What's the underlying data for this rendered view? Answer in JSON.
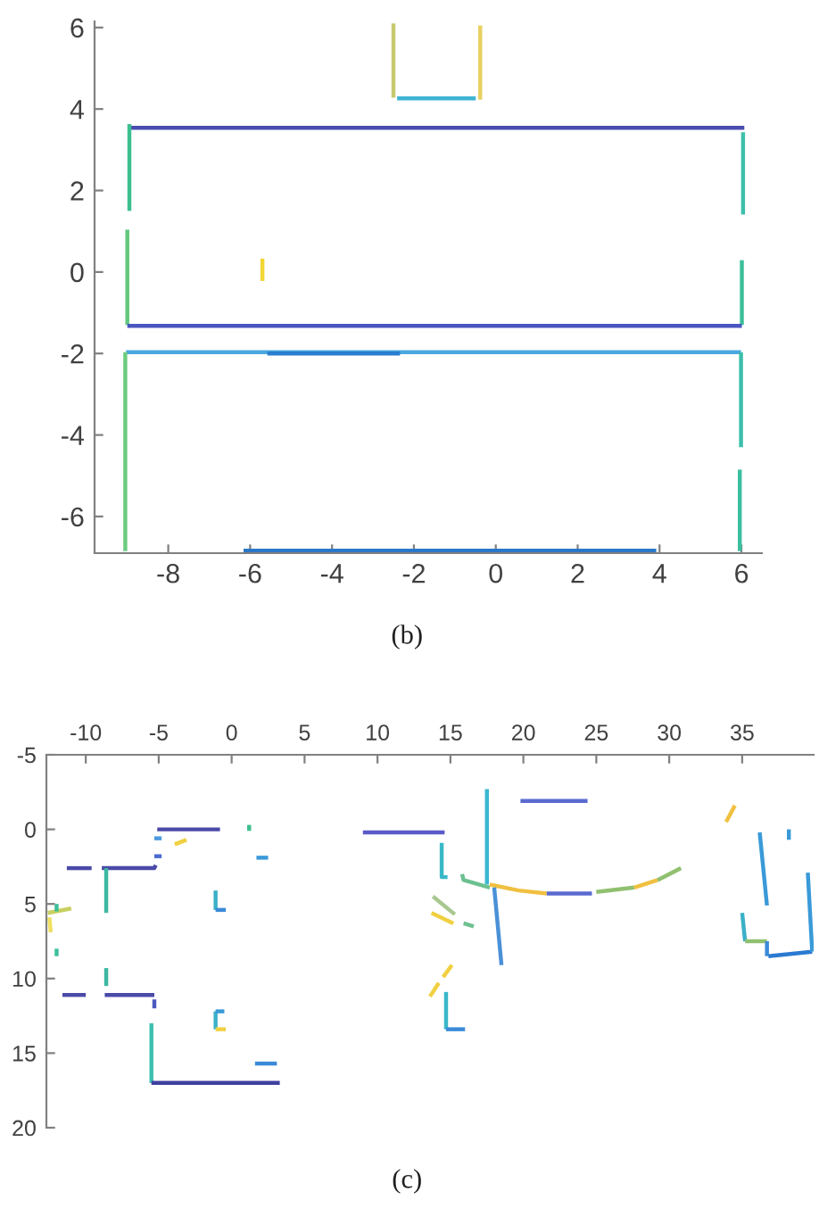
{
  "chart_data": [
    {
      "type": "line",
      "xlim": [
        -9.8,
        6.5
      ],
      "ylim": [
        -6.9,
        6.15
      ],
      "xticks": [
        -8,
        -6,
        -4,
        -2,
        0,
        2,
        4,
        6
      ],
      "yticks": [
        -6,
        -4,
        -2,
        0,
        2,
        4,
        6
      ],
      "annotations": [
        "(b)"
      ],
      "series": [
        {
          "color": "#c8c870",
          "x": [
            -2.5,
            -2.5
          ],
          "values": [
            6.1,
            4.28
          ]
        },
        {
          "color": "#e8d060",
          "x": [
            -0.38,
            -0.38
          ],
          "values": [
            6.05,
            4.23
          ]
        },
        {
          "color": "#3fb4d4",
          "x": [
            -2.41,
            -0.49
          ],
          "values": [
            4.26,
            4.26
          ]
        },
        {
          "color": "#4a4db0",
          "x": [
            -8.95,
            6.07
          ],
          "values": [
            3.54,
            3.54
          ]
        },
        {
          "color": "#3cbf90",
          "x": [
            -8.95,
            -8.95
          ],
          "values": [
            3.63,
            1.5
          ]
        },
        {
          "color": "#62c87e",
          "x": [
            -9.0,
            -9.0
          ],
          "values": [
            1.04,
            -1.3
          ]
        },
        {
          "color": "#f2d633",
          "x": [
            -5.7,
            -5.7
          ],
          "values": [
            0.33,
            -0.22
          ]
        },
        {
          "color": "#3cbfaa",
          "x": [
            6.04,
            6.04
          ],
          "values": [
            3.43,
            1.41
          ]
        },
        {
          "color": "#3cbf9a",
          "x": [
            6.01,
            6.01
          ],
          "values": [
            0.29,
            -1.3
          ]
        },
        {
          "color": "#4a55c0",
          "x": [
            -9.0,
            6.01
          ],
          "values": [
            -1.32,
            -1.32
          ]
        },
        {
          "color": "#4aa8e0",
          "x": [
            -9.03,
            5.99
          ],
          "values": [
            -1.97,
            -1.97
          ]
        },
        {
          "color": "#2a7fd0",
          "x": [
            -5.58,
            -2.34
          ],
          "values": [
            -2.0,
            -2.0
          ]
        },
        {
          "color": "#6ccc80",
          "x": [
            -9.05,
            -9.05
          ],
          "values": [
            -1.97,
            -6.85
          ]
        },
        {
          "color": "#3cbfaa",
          "x": [
            5.99,
            5.99
          ],
          "values": [
            -1.97,
            -4.3
          ]
        },
        {
          "color": "#3cbfa0",
          "x": [
            5.96,
            5.96
          ],
          "values": [
            -4.85,
            -6.85
          ]
        },
        {
          "color": "#2a78c8",
          "x": [
            -6.16,
            3.92
          ],
          "values": [
            -6.84,
            -6.84
          ]
        }
      ]
    },
    {
      "type": "line",
      "xlim": [
        -12.7,
        39.9
      ],
      "ylim": [
        20,
        -5
      ],
      "xticks": [
        -10,
        -5,
        0,
        5,
        10,
        15,
        20,
        25,
        30,
        35
      ],
      "yticks": [
        -5,
        0,
        5,
        10,
        15,
        20
      ],
      "annotations": [
        "(c)"
      ],
      "series": [
        {
          "color": "#4a4aa8",
          "x": [
            -5.1,
            -0.8
          ],
          "values": [
            0.0,
            0.0
          ]
        },
        {
          "color": "#3cbf8f",
          "x": [
            1.2,
            1.2
          ],
          "values": [
            -0.3,
            0.1
          ]
        },
        {
          "color": "#4a9ae0",
          "x": [
            -5.3,
            -4.8
          ],
          "values": [
            0.6,
            0.6
          ]
        },
        {
          "color": "#f0d040",
          "x": [
            -3.9,
            -3.1
          ],
          "values": [
            1.0,
            0.7
          ]
        },
        {
          "color": "#4a6ad0",
          "x": [
            -5.3,
            -4.8
          ],
          "values": [
            1.8,
            1.8
          ]
        },
        {
          "color": "#3a9ad8",
          "x": [
            1.7,
            2.5
          ],
          "values": [
            1.9,
            1.9
          ]
        },
        {
          "color": "#4a4aa8",
          "x": [
            -11.3,
            -9.6
          ],
          "values": [
            2.6,
            2.6
          ]
        },
        {
          "color": "#4a4aa8",
          "x": [
            -8.9,
            -5.3,
            -5.2
          ],
          "values": [
            2.6,
            2.6,
            2.4
          ]
        },
        {
          "color": "#3cb8a0",
          "x": [
            -8.6,
            -8.6
          ],
          "values": [
            2.6,
            5.6
          ]
        },
        {
          "color": "#3ab0c8",
          "x": [
            -1.1,
            -1.1
          ],
          "values": [
            4.1,
            5.4
          ]
        },
        {
          "color": "#3a8ad8",
          "x": [
            -1.1,
            -0.4
          ],
          "values": [
            5.4,
            5.4
          ]
        },
        {
          "color": "#c8d060",
          "x": [
            -12.6,
            -11.0
          ],
          "values": [
            5.6,
            5.3
          ]
        },
        {
          "color": "#3cbf9a",
          "x": [
            -12.0,
            -12.0
          ],
          "values": [
            5.0,
            5.5
          ]
        },
        {
          "color": "#f0e060",
          "x": [
            -12.5,
            -12.4
          ],
          "values": [
            5.9,
            6.9
          ]
        },
        {
          "color": "#3cbf9a",
          "x": [
            -12.0,
            -12.0
          ],
          "values": [
            8.0,
            8.5
          ]
        },
        {
          "color": "#3cb8a0",
          "x": [
            -8.6,
            -8.6
          ],
          "values": [
            9.3,
            10.5
          ]
        },
        {
          "color": "#4a4aa8",
          "x": [
            -11.6,
            -10.0
          ],
          "values": [
            11.1,
            11.1
          ]
        },
        {
          "color": "#4a4aa8",
          "x": [
            -8.7,
            -5.3
          ],
          "values": [
            11.1,
            11.1
          ]
        },
        {
          "color": "#4a5ac0",
          "x": [
            -5.3,
            -5.3
          ],
          "values": [
            11.4,
            12.0
          ]
        },
        {
          "color": "#3cbfb0",
          "x": [
            -5.5,
            -5.5
          ],
          "values": [
            13.0,
            17.0
          ]
        },
        {
          "color": "#4040a0",
          "x": [
            -5.5,
            3.3
          ],
          "values": [
            17.0,
            17.0
          ]
        },
        {
          "color": "#3ab0c8",
          "x": [
            -1.1,
            -1.1
          ],
          "values": [
            12.2,
            13.4
          ]
        },
        {
          "color": "#3a9ad8",
          "x": [
            -1.1,
            -0.5
          ],
          "values": [
            12.2,
            12.2
          ]
        },
        {
          "color": "#f0d040",
          "x": [
            -1.1,
            -0.4
          ],
          "values": [
            13.4,
            13.4
          ]
        },
        {
          "color": "#3a8ad8",
          "x": [
            1.6,
            3.1
          ],
          "values": [
            15.7,
            15.7
          ]
        },
        {
          "color": "#5a5ac8",
          "x": [
            9.0,
            14.6
          ],
          "values": [
            0.2,
            0.2
          ]
        },
        {
          "color": "#3ab8c8",
          "x": [
            14.4,
            14.4,
            14.8
          ],
          "values": [
            0.9,
            3.2,
            3.2
          ]
        },
        {
          "color": "#3ab8d0",
          "x": [
            17.5,
            17.5
          ],
          "values": [
            -2.7,
            3.7
          ]
        },
        {
          "color": "#5a6ad0",
          "x": [
            19.8,
            24.4
          ],
          "values": [
            -1.9,
            -1.9
          ]
        },
        {
          "color": "#6cc090",
          "x": [
            15.8,
            15.9,
            17.7
          ],
          "values": [
            3.0,
            3.4,
            3.9
          ]
        },
        {
          "color": "#f0c040",
          "x": [
            17.7,
            19.7,
            21.6
          ],
          "values": [
            3.7,
            4.1,
            4.3
          ]
        },
        {
          "color": "#5a6ad0",
          "x": [
            21.6,
            24.7
          ],
          "values": [
            4.3,
            4.3
          ]
        },
        {
          "color": "#90c070",
          "x": [
            25.0,
            27.6
          ],
          "values": [
            4.2,
            3.9
          ]
        },
        {
          "color": "#f0c040",
          "x": [
            27.6,
            29.2
          ],
          "values": [
            3.9,
            3.4
          ]
        },
        {
          "color": "#90c070",
          "x": [
            29.2,
            30.8
          ],
          "values": [
            3.4,
            2.6
          ]
        },
        {
          "color": "#4a90d8",
          "x": [
            18.0,
            18.5
          ],
          "values": [
            3.9,
            9.1
          ]
        },
        {
          "color": "#a8c890",
          "x": [
            13.8,
            15.3
          ],
          "values": [
            4.5,
            5.7
          ]
        },
        {
          "color": "#f0d040",
          "x": [
            13.7,
            15.2
          ],
          "values": [
            5.6,
            6.3
          ]
        },
        {
          "color": "#70c090",
          "x": [
            15.9,
            16.6
          ],
          "values": [
            6.3,
            6.5
          ]
        },
        {
          "color": "#f0d040",
          "x": [
            13.6,
            14.2
          ],
          "values": [
            11.2,
            10.3
          ]
        },
        {
          "color": "#f0d040",
          "x": [
            14.5,
            15.1
          ],
          "values": [
            9.9,
            9.1
          ]
        },
        {
          "color": "#3ab8c8",
          "x": [
            14.7,
            14.7
          ],
          "values": [
            10.9,
            13.4
          ]
        },
        {
          "color": "#3a8ad8",
          "x": [
            14.7,
            16.0
          ],
          "values": [
            13.4,
            13.4
          ]
        },
        {
          "color": "#f0c040",
          "x": [
            33.9,
            34.5
          ],
          "values": [
            -0.5,
            -1.6
          ]
        },
        {
          "color": "#3a9ad8",
          "x": [
            36.2,
            36.7
          ],
          "values": [
            0.2,
            5.1
          ]
        },
        {
          "color": "#3a9ad8",
          "x": [
            38.2,
            38.2
          ],
          "values": [
            0.0,
            0.7
          ]
        },
        {
          "color": "#3ab0c8",
          "x": [
            35.0,
            35.2
          ],
          "values": [
            5.6,
            7.5
          ]
        },
        {
          "color": "#90c070",
          "x": [
            35.2,
            36.7
          ],
          "values": [
            7.5,
            7.5
          ]
        },
        {
          "color": "#3a8ad8",
          "x": [
            36.7,
            36.7
          ],
          "values": [
            7.5,
            8.5
          ]
        },
        {
          "color": "#2a7ad0",
          "x": [
            36.8,
            39.8
          ],
          "values": [
            8.5,
            8.2
          ]
        },
        {
          "color": "#3a9ad8",
          "x": [
            39.5,
            39.8
          ],
          "values": [
            2.9,
            8.2
          ]
        }
      ]
    }
  ]
}
